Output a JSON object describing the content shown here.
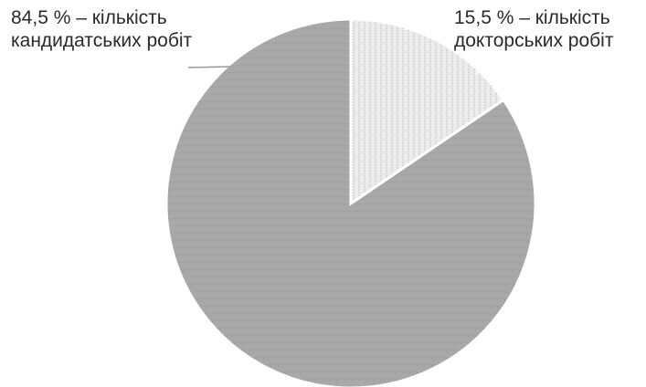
{
  "chart_data": {
    "type": "pie",
    "slices": [
      {
        "value": 15.5,
        "label_lines": [
          "15,5 % – кількість",
          "докторських робіт"
        ],
        "color": "#ebebeb",
        "pattern": "vertical-lines"
      },
      {
        "value": 84.5,
        "label_lines": [
          "84,5 % – кількість",
          "кандидатських робіт"
        ],
        "color": "#a9a9a9",
        "pattern": "dotted-grid"
      }
    ],
    "legend": "none"
  }
}
